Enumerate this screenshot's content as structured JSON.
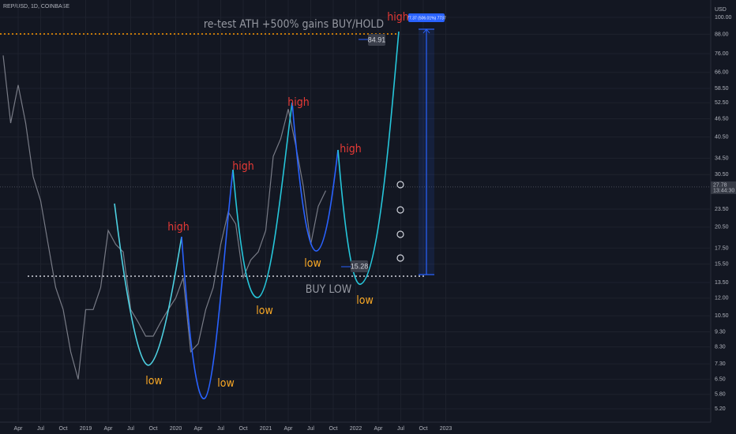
{
  "chart_data": {
    "type": "line",
    "title": "REP/USD, 1D, COINBASE",
    "currency": "USD",
    "log_scale": true,
    "color": "#787b86",
    "categories": [
      null,
      null,
      "Apr",
      null,
      null,
      "Jul",
      null,
      null,
      "Oct",
      null,
      null,
      "2019",
      null,
      null,
      "Apr",
      null,
      null,
      "Jul",
      null,
      null,
      "Oct",
      null,
      null,
      "2020",
      null,
      null,
      "Apr",
      null,
      null,
      "Jul",
      null,
      null,
      "Oct",
      null,
      null,
      "2021",
      null,
      null,
      "Apr",
      null,
      null,
      "Jul",
      null,
      null,
      "Oct",
      null,
      null,
      "2022",
      null,
      null,
      "Apr",
      null,
      null,
      "Jul",
      null,
      null,
      "Oct",
      null,
      null,
      "2023"
    ],
    "values": [
      75,
      45,
      60,
      45,
      30,
      25,
      18,
      13,
      11,
      8,
      6.5,
      11,
      11,
      13,
      20,
      18,
      17,
      11,
      10,
      9,
      9,
      10,
      11,
      12,
      14,
      8,
      8.5,
      11,
      13,
      18,
      23,
      21,
      14,
      16,
      17,
      20,
      35,
      40,
      50,
      38,
      28,
      18,
      24,
      27,
      null,
      null,
      null,
      null,
      null,
      null,
      null,
      null,
      null,
      null,
      null,
      null,
      null,
      null,
      null,
      null
    ],
    "ylim": [
      4.7,
      114
    ],
    "yticks": [
      {
        "value": 100,
        "label": "100.00"
      },
      {
        "value": 88,
        "label": "88.00"
      },
      {
        "value": 76,
        "label": "76.00"
      },
      {
        "value": 66,
        "label": "66.00"
      },
      {
        "value": 58.5,
        "label": "58.50"
      },
      {
        "value": 52.5,
        "label": "52.50"
      },
      {
        "value": 46.5,
        "label": "46.50"
      },
      {
        "value": 40.5,
        "label": "40.50"
      },
      {
        "value": 34.5,
        "label": "34.50"
      },
      {
        "value": 30.5,
        "label": "30.50"
      },
      {
        "value": 23.5,
        "label": "23.50"
      },
      {
        "value": 20.5,
        "label": "20.50"
      },
      {
        "value": 17.5,
        "label": "17.50"
      },
      {
        "value": 15.5,
        "label": "15.50"
      },
      {
        "value": 13.5,
        "label": "13.50"
      },
      {
        "value": 12,
        "label": "12.00"
      },
      {
        "value": 10.5,
        "label": "10.50"
      },
      {
        "value": 9.3,
        "label": "9.30"
      },
      {
        "value": 8.3,
        "label": "8.30"
      },
      {
        "value": 7.3,
        "label": "7.30"
      },
      {
        "value": 6.5,
        "label": "6.50"
      },
      {
        "value": 5.8,
        "label": "5.80"
      },
      {
        "value": 5.2,
        "label": "5.20"
      }
    ],
    "grid": true,
    "last_price": {
      "value": 27.78,
      "label": "27.78",
      "countdown": "13:44:30"
    },
    "annotations": {
      "headline": "re-test ATH +500% gains BUY/HOLD",
      "buy": "BUY LOW",
      "top_level": "84.91",
      "bottom_level": "15.28",
      "measure": "77.37 (506.01%) 7737",
      "highs": [
        "high",
        "high",
        "high",
        "high",
        "high"
      ],
      "lows": [
        "low",
        "low",
        "low",
        "low",
        "low"
      ]
    }
  }
}
